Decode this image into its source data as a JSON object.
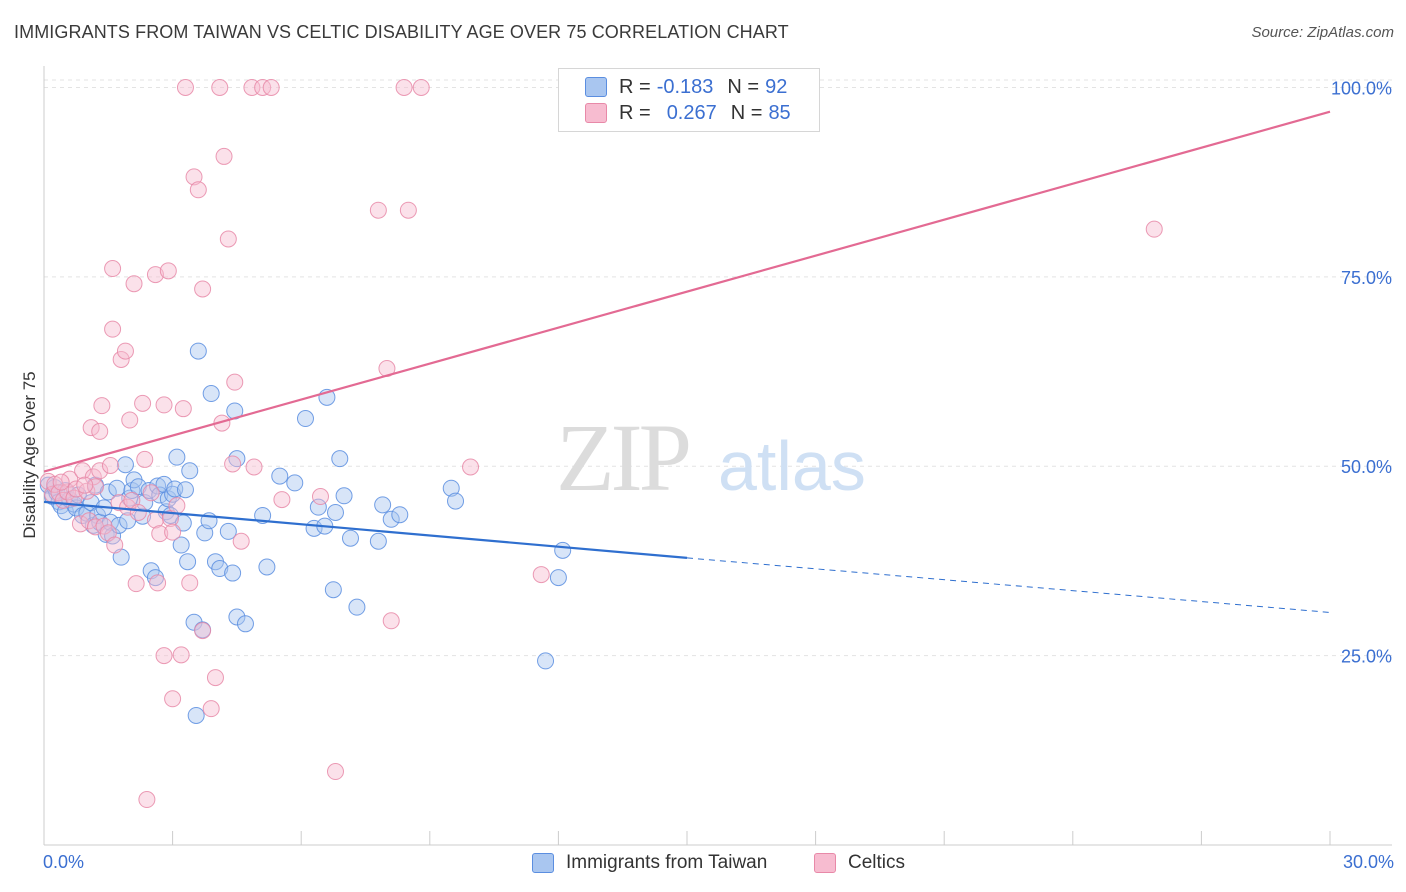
{
  "title": "IMMIGRANTS FROM TAIWAN VS CELTIC DISABILITY AGE OVER 75 CORRELATION CHART",
  "source": "Source: ZipAtlas.com",
  "watermark": {
    "zip": "ZIP",
    "atlas": "atlas"
  },
  "legend": {
    "r_label": "R =",
    "n_label": "N =",
    "rows": [
      {
        "r": "-0.183",
        "n": "92",
        "fill": "#a9c6f0",
        "stroke": "#5b8ee0"
      },
      {
        "r": "0.267",
        "n": "85",
        "fill": "#f7bcd0",
        "stroke": "#e889a8"
      }
    ]
  },
  "bottom_legend": [
    {
      "label": "Immigrants from Taiwan",
      "fill": "#a9c6f0",
      "stroke": "#5b8ee0"
    },
    {
      "label": "Celtics",
      "fill": "#f7bcd0",
      "stroke": "#e889a8"
    }
  ],
  "chart_data": {
    "type": "scatter",
    "title": "IMMIGRANTS FROM TAIWAN VS CELTIC DISABILITY AGE OVER 75 CORRELATION CHART",
    "xlabel": "",
    "ylabel": "Disability Age Over 75",
    "xlim": [
      0,
      30
    ],
    "ylim": [
      0,
      100
    ],
    "x_tick_labels": [
      "0.0%",
      "30.0%"
    ],
    "y_tick_labels": [
      {
        "value": 100,
        "label": "100.0%"
      },
      {
        "value": 75,
        "label": "75.0%"
      },
      {
        "value": 50,
        "label": "50.0%"
      },
      {
        "value": 25,
        "label": "25.0%"
      }
    ],
    "grid": true,
    "series": [
      {
        "name": "Immigrants from Taiwan",
        "color": "#5b8ee0",
        "fill": "#a9c6f0",
        "trend": {
          "x0": 0,
          "y0": 45.3,
          "x1": 15,
          "y1": 37.9,
          "dashed_to_x": 30,
          "dashed_to_y": 30.7,
          "color": "#2f6fcf"
        },
        "points": [
          [
            0.1,
            47.5
          ],
          [
            0.2,
            46.0
          ],
          [
            0.25,
            47.2
          ],
          [
            0.3,
            46.5
          ],
          [
            0.35,
            45.3
          ],
          [
            0.4,
            44.8
          ],
          [
            0.5,
            46.8
          ],
          [
            0.5,
            44.0
          ],
          [
            0.6,
            45.6
          ],
          [
            0.7,
            45.0
          ],
          [
            0.75,
            44.5
          ],
          [
            0.8,
            46.2
          ],
          [
            0.9,
            43.5
          ],
          [
            1.0,
            43.8
          ],
          [
            1.1,
            45.2
          ],
          [
            1.15,
            42.2
          ],
          [
            1.2,
            47.5
          ],
          [
            1.25,
            43.5
          ],
          [
            1.3,
            42.6
          ],
          [
            1.4,
            44.5
          ],
          [
            1.45,
            41.0
          ],
          [
            1.5,
            46.6
          ],
          [
            1.55,
            42.6
          ],
          [
            1.6,
            40.8
          ],
          [
            1.7,
            47.1
          ],
          [
            1.75,
            42.2
          ],
          [
            1.8,
            38.0
          ],
          [
            1.9,
            50.2
          ],
          [
            1.95,
            42.8
          ],
          [
            2.0,
            45.8
          ],
          [
            2.05,
            46.8
          ],
          [
            2.1,
            48.2
          ],
          [
            2.2,
            47.3
          ],
          [
            2.3,
            43.4
          ],
          [
            2.35,
            45.2
          ],
          [
            2.45,
            46.8
          ],
          [
            2.5,
            36.2
          ],
          [
            2.6,
            35.3
          ],
          [
            2.65,
            47.4
          ],
          [
            2.7,
            46.2
          ],
          [
            2.8,
            47.6
          ],
          [
            2.85,
            44.0
          ],
          [
            2.9,
            45.7
          ],
          [
            2.95,
            43.5
          ],
          [
            3.0,
            46.3
          ],
          [
            3.05,
            47.0
          ],
          [
            3.1,
            51.2
          ],
          [
            3.2,
            39.6
          ],
          [
            3.25,
            42.5
          ],
          [
            3.3,
            46.9
          ],
          [
            3.35,
            37.4
          ],
          [
            3.4,
            49.4
          ],
          [
            3.5,
            29.4
          ],
          [
            3.55,
            17.1
          ],
          [
            3.6,
            65.2
          ],
          [
            3.7,
            28.4
          ],
          [
            3.75,
            41.2
          ],
          [
            3.85,
            42.8
          ],
          [
            3.9,
            59.6
          ],
          [
            4.0,
            37.4
          ],
          [
            4.1,
            36.5
          ],
          [
            4.3,
            41.4
          ],
          [
            4.4,
            35.9
          ],
          [
            4.45,
            57.3
          ],
          [
            4.5,
            51.0
          ],
          [
            4.5,
            30.1
          ],
          [
            4.7,
            29.2
          ],
          [
            5.1,
            43.5
          ],
          [
            5.2,
            36.7
          ],
          [
            5.5,
            48.7
          ],
          [
            5.85,
            47.8
          ],
          [
            6.1,
            56.3
          ],
          [
            6.3,
            41.8
          ],
          [
            6.4,
            44.6
          ],
          [
            6.55,
            42.1
          ],
          [
            6.6,
            59.1
          ],
          [
            6.75,
            33.7
          ],
          [
            6.8,
            43.9
          ],
          [
            6.9,
            51.0
          ],
          [
            7.0,
            46.1
          ],
          [
            7.15,
            40.5
          ],
          [
            7.3,
            31.4
          ],
          [
            7.8,
            40.1
          ],
          [
            7.9,
            44.9
          ],
          [
            8.1,
            43.0
          ],
          [
            8.3,
            43.6
          ],
          [
            9.5,
            47.1
          ],
          [
            9.6,
            45.4
          ],
          [
            11.7,
            24.3
          ],
          [
            12.0,
            35.3
          ],
          [
            12.1,
            38.9
          ]
        ]
      },
      {
        "name": "Celtics",
        "color": "#e889a8",
        "fill": "#f7bcd0",
        "trend": {
          "x0": 0,
          "y0": 49.3,
          "x1": 30,
          "y1": 96.8,
          "color": "#e36a93"
        },
        "points": [
          [
            0.1,
            48.0
          ],
          [
            0.2,
            46.3
          ],
          [
            0.25,
            47.6
          ],
          [
            0.35,
            46.5
          ],
          [
            0.45,
            45.5
          ],
          [
            0.55,
            46.6
          ],
          [
            0.6,
            48.3
          ],
          [
            0.7,
            45.8
          ],
          [
            0.75,
            47.0
          ],
          [
            0.85,
            42.4
          ],
          [
            0.9,
            49.4
          ],
          [
            1.0,
            46.7
          ],
          [
            1.05,
            42.8
          ],
          [
            1.1,
            55.1
          ],
          [
            1.15,
            48.6
          ],
          [
            1.2,
            42.0
          ],
          [
            1.3,
            49.4
          ],
          [
            1.3,
            54.6
          ],
          [
            1.35,
            58.0
          ],
          [
            1.4,
            42.1
          ],
          [
            1.5,
            41.2
          ],
          [
            1.55,
            50.1
          ],
          [
            1.6,
            76.1
          ],
          [
            1.6,
            68.1
          ],
          [
            1.65,
            39.6
          ],
          [
            1.75,
            45.2
          ],
          [
            1.8,
            64.1
          ],
          [
            1.9,
            65.2
          ],
          [
            1.95,
            44.6
          ],
          [
            2.0,
            56.1
          ],
          [
            2.05,
            45.5
          ],
          [
            2.1,
            74.1
          ],
          [
            2.15,
            34.5
          ],
          [
            2.2,
            43.9
          ],
          [
            2.3,
            58.3
          ],
          [
            2.35,
            50.9
          ],
          [
            2.5,
            46.5
          ],
          [
            2.6,
            42.9
          ],
          [
            2.6,
            75.3
          ],
          [
            2.65,
            34.6
          ],
          [
            2.7,
            41.1
          ],
          [
            2.8,
            25.0
          ],
          [
            2.8,
            58.1
          ],
          [
            2.9,
            75.8
          ],
          [
            2.95,
            43.1
          ],
          [
            3.0,
            19.3
          ],
          [
            3.0,
            41.3
          ],
          [
            3.2,
            25.1
          ],
          [
            3.25,
            57.6
          ],
          [
            3.3,
            100.0
          ],
          [
            3.4,
            34.6
          ],
          [
            3.5,
            88.2
          ],
          [
            3.6,
            86.5
          ],
          [
            3.7,
            73.4
          ],
          [
            3.7,
            28.3
          ],
          [
            3.9,
            18.0
          ],
          [
            4.0,
            22.1
          ],
          [
            4.1,
            100.0
          ],
          [
            4.15,
            55.7
          ],
          [
            4.2,
            90.9
          ],
          [
            4.3,
            80.0
          ],
          [
            4.4,
            50.3
          ],
          [
            4.45,
            61.1
          ],
          [
            4.6,
            40.1
          ],
          [
            4.85,
            100.0
          ],
          [
            4.9,
            49.9
          ],
          [
            5.1,
            100.0
          ],
          [
            5.3,
            100.0
          ],
          [
            5.55,
            45.6
          ],
          [
            6.45,
            46.0
          ],
          [
            6.8,
            9.7
          ],
          [
            7.8,
            83.8
          ],
          [
            8.0,
            62.9
          ],
          [
            8.1,
            29.6
          ],
          [
            8.4,
            100.0
          ],
          [
            8.5,
            83.8
          ],
          [
            8.8,
            100.0
          ],
          [
            9.95,
            49.9
          ],
          [
            11.6,
            35.7
          ],
          [
            25.9,
            81.3
          ],
          [
            1.2,
            47.3
          ],
          [
            0.4,
            47.9
          ],
          [
            2.4,
            6.0
          ],
          [
            3.1,
            44.8
          ],
          [
            0.95,
            47.5
          ]
        ]
      }
    ]
  }
}
